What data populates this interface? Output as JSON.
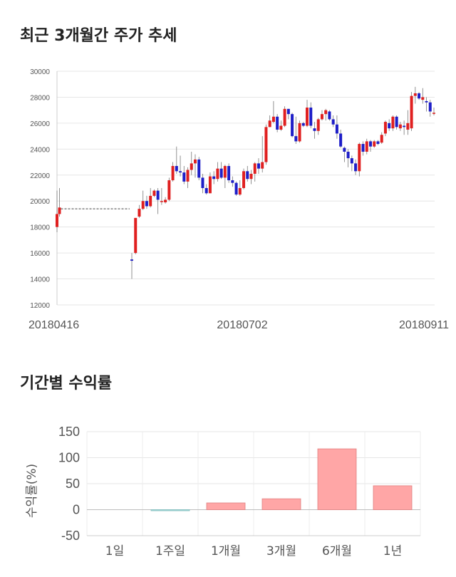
{
  "title1": "최근 3개월간 주가 추세",
  "title2": "기간별 수익률",
  "chart_data": [
    {
      "type": "candlestick",
      "title": "최근 3개월간 주가 추세",
      "ylim": [
        12000,
        30000
      ],
      "yticks": [
        12000,
        14000,
        16000,
        18000,
        20000,
        22000,
        24000,
        26000,
        28000,
        30000
      ],
      "x_labels": [
        "20180416",
        "20180702",
        "20180911"
      ],
      "grid": true,
      "colors": {
        "up": "#e02020",
        "down": "#1e1ec8"
      },
      "candles": [
        [
          18000,
          19000,
          20800,
          17600
        ],
        [
          19000,
          19500,
          21000,
          18800
        ],
        [
          15500,
          15400,
          16000,
          14000
        ],
        [
          16000,
          18700,
          18700,
          15900
        ],
        [
          18800,
          19400,
          19700,
          18700
        ],
        [
          19400,
          20000,
          20800,
          19300
        ],
        [
          20000,
          19600,
          20400,
          19400
        ],
        [
          19600,
          20400,
          21000,
          19500
        ],
        [
          20400,
          20800,
          20900,
          20300
        ],
        [
          20800,
          20100,
          21000,
          19000
        ],
        [
          20000,
          20000,
          21000,
          19700
        ],
        [
          19900,
          20100,
          20300,
          19800
        ],
        [
          20100,
          21600,
          21800,
          20000
        ],
        [
          21600,
          22700,
          23000,
          21500
        ],
        [
          22700,
          22300,
          24200,
          22100
        ],
        [
          22300,
          22200,
          23500,
          21900
        ],
        [
          22200,
          21500,
          22700,
          21300
        ],
        [
          21500,
          22400,
          22600,
          21000
        ],
        [
          22400,
          22900,
          23800,
          22000
        ],
        [
          22900,
          23200,
          23600,
          21800
        ],
        [
          23200,
          21800,
          23400,
          21600
        ],
        [
          21800,
          21000,
          22100,
          20600
        ],
        [
          21000,
          20600,
          21300,
          20500
        ],
        [
          20600,
          21900,
          22200,
          20600
        ],
        [
          21900,
          21700,
          22300,
          21300
        ],
        [
          21700,
          22500,
          23000,
          21500
        ],
        [
          22500,
          21800,
          23000,
          21700
        ],
        [
          21800,
          22700,
          22800,
          21000
        ],
        [
          22700,
          21600,
          22900,
          21400
        ],
        [
          21600,
          21400,
          21900,
          21100
        ],
        [
          21400,
          20500,
          21500,
          20400
        ],
        [
          20500,
          21000,
          21600,
          20400
        ],
        [
          21000,
          22300,
          22500,
          20900
        ],
        [
          22300,
          21700,
          22700,
          21500
        ],
        [
          21700,
          22100,
          22400,
          21300
        ],
        [
          22100,
          22900,
          23000,
          21500
        ],
        [
          22900,
          22500,
          23300,
          22100
        ],
        [
          22500,
          23000,
          25000,
          22200
        ],
        [
          23000,
          25700,
          25900,
          22800
        ],
        [
          25700,
          26200,
          26600,
          25700
        ],
        [
          26100,
          26500,
          27700,
          26000
        ],
        [
          26500,
          25500,
          26700,
          25300
        ],
        [
          25500,
          25800,
          26200,
          25400
        ],
        [
          25800,
          27100,
          27300,
          25700
        ],
        [
          27100,
          26700,
          27100,
          26300
        ],
        [
          26700,
          25000,
          26800,
          24900
        ],
        [
          25000,
          24600,
          26500,
          24400
        ],
        [
          24600,
          26000,
          26200,
          24500
        ],
        [
          26000,
          25800,
          26100,
          25700
        ],
        [
          25800,
          27200,
          27800,
          25700
        ],
        [
          27200,
          25800,
          27600,
          25600
        ],
        [
          25600,
          25400,
          26100,
          24800
        ],
        [
          25400,
          26300,
          26400,
          25100
        ],
        [
          26300,
          26700,
          27000,
          26200
        ],
        [
          26700,
          27000,
          27100,
          26200
        ],
        [
          26900,
          26300,
          27000,
          26200
        ],
        [
          26300,
          25900,
          26600,
          25700
        ],
        [
          25900,
          25200,
          26600,
          24800
        ],
        [
          25200,
          24200,
          25500,
          24100
        ],
        [
          24100,
          23800,
          24200,
          23000
        ],
        [
          23800,
          23300,
          24000,
          22600
        ],
        [
          23300,
          22900,
          23500,
          22300
        ],
        [
          22900,
          22300,
          23200,
          22000
        ],
        [
          22300,
          24400,
          24500,
          21900
        ],
        [
          24400,
          23800,
          24600,
          23500
        ],
        [
          23800,
          24600,
          24800,
          23600
        ],
        [
          24600,
          24200,
          24700,
          23800
        ],
        [
          24200,
          24600,
          24700,
          24100
        ],
        [
          24600,
          24400,
          24700,
          24300
        ],
        [
          24500,
          25100,
          25300,
          24400
        ],
        [
          25200,
          26100,
          26200,
          25000
        ],
        [
          26000,
          25600,
          26300,
          25400
        ],
        [
          25600,
          26500,
          26600,
          25400
        ],
        [
          26500,
          25700,
          26600,
          25500
        ],
        [
          25600,
          25900,
          26100,
          25400
        ],
        [
          25800,
          25700,
          26200,
          25100
        ],
        [
          25500,
          26000,
          27000,
          25100
        ],
        [
          25600,
          28100,
          28400,
          25400
        ],
        [
          28100,
          28300,
          28800,
          27500
        ],
        [
          28300,
          27900,
          28400,
          27800
        ],
        [
          27800,
          28000,
          28700,
          27500
        ],
        [
          27700,
          27600,
          28000,
          26900
        ],
        [
          27600,
          26900,
          27800,
          26500
        ],
        [
          26800,
          26800,
          27200,
          26600
        ]
      ],
      "gap": {
        "from_index": 1,
        "to_index": 2,
        "level": 19400
      }
    },
    {
      "type": "bar",
      "title": "기간별 수익률",
      "ylabel": "수익률(%)",
      "ylim": [
        -50,
        150
      ],
      "yticks": [
        -50,
        0,
        50,
        100,
        150
      ],
      "categories": [
        "1일",
        "1주일",
        "1개월",
        "3개월",
        "6개월",
        "1년"
      ],
      "values": [
        0,
        -2,
        13,
        21,
        117,
        46
      ],
      "colors": {
        "positive": "#ffa6a6",
        "negative": "#a8dede"
      },
      "grid": true
    }
  ]
}
